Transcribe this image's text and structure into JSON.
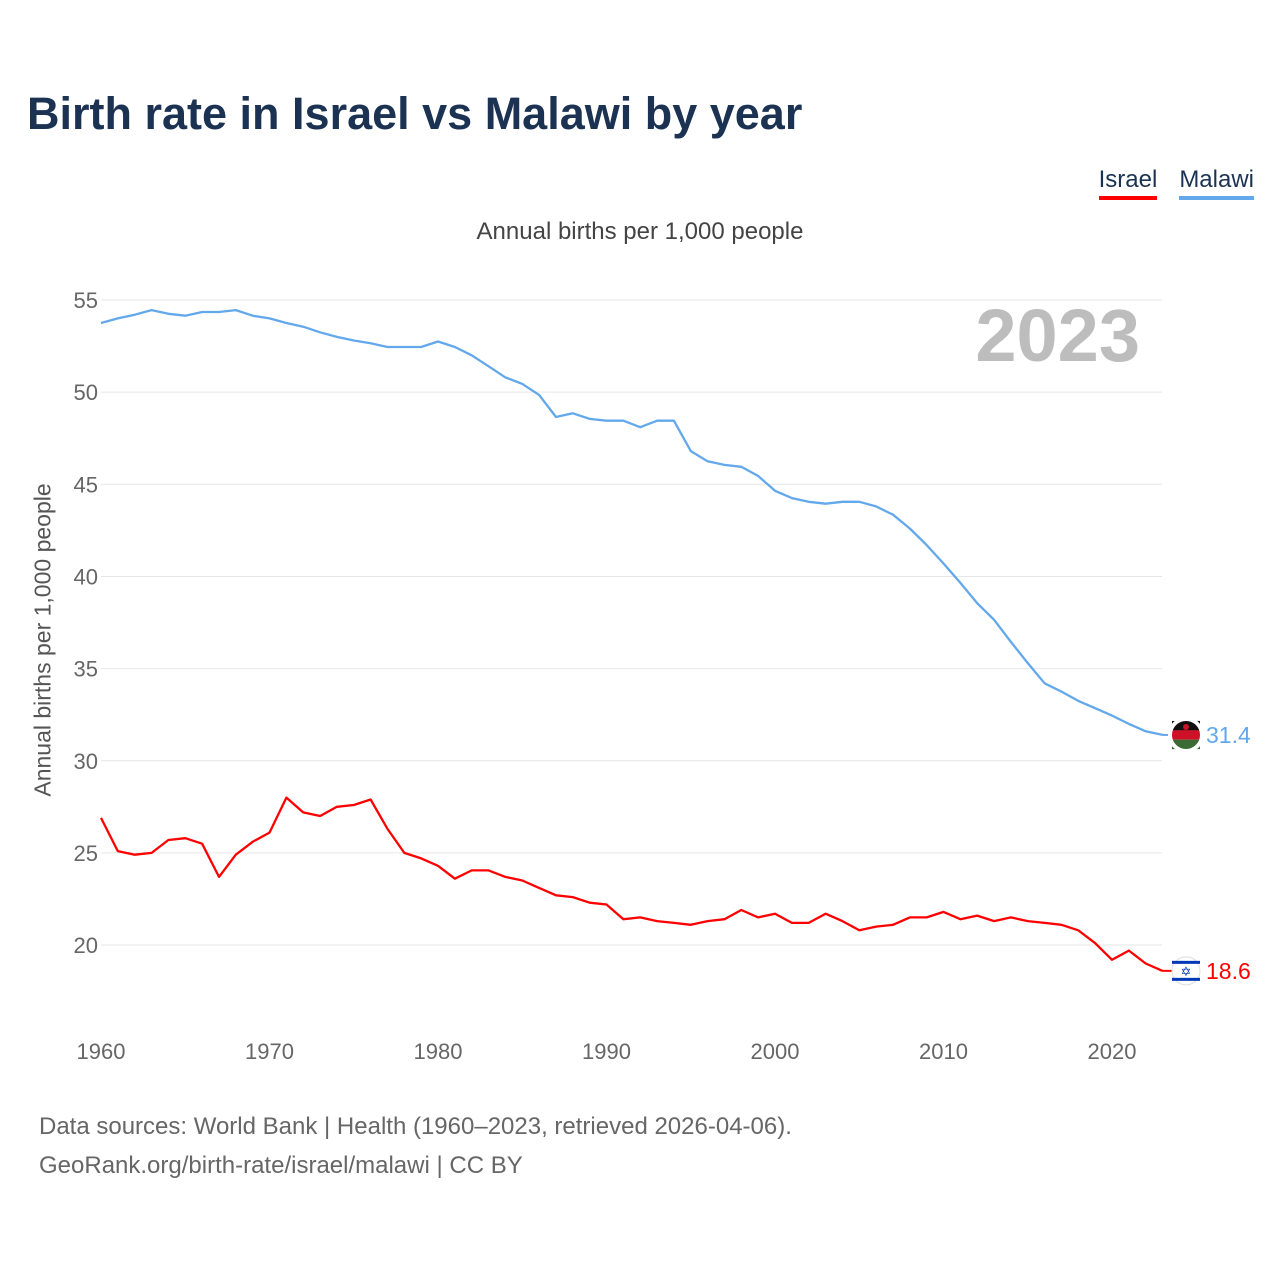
{
  "title": "Birth rate in Israel vs Malawi by year",
  "legend": [
    "Israel",
    "Malawi"
  ],
  "subtitle": "Annual births per 1,000 people",
  "footer": {
    "line1": "Data sources: World Bank | Health (1960–2023, retrieved 2026-04-06).",
    "line2": "GeoRank.org/birth-rate/israel/malawi | CC BY"
  },
  "chart_data": {
    "type": "line",
    "title": "Birth rate in Israel vs Malawi by year",
    "xlabel": "",
    "ylabel": "Annual births per 1,000 people",
    "year_label": "2023",
    "xlim": [
      1960,
      2023
    ],
    "ylim": [
      16,
      56
    ],
    "x_ticks": [
      1960,
      1970,
      1980,
      1990,
      2000,
      2010,
      2020
    ],
    "y_ticks": [
      20,
      25,
      30,
      35,
      40,
      45,
      50,
      55
    ],
    "grid": true,
    "legend_position": "top-right",
    "x_start": 1960,
    "series": [
      {
        "name": "Israel",
        "color": "#ff0000",
        "end_label": "18.6",
        "icon": "israel-flag-icon",
        "values": [
          26.9,
          25.1,
          24.9,
          25.0,
          25.7,
          25.8,
          25.5,
          23.7,
          24.9,
          25.6,
          26.1,
          28.0,
          27.2,
          27.0,
          27.5,
          27.6,
          27.9,
          26.3,
          25.0,
          24.7,
          24.3,
          23.6,
          24.05,
          24.05,
          23.7,
          23.5,
          23.1,
          22.7,
          22.6,
          22.3,
          22.2,
          21.4,
          21.5,
          21.3,
          21.2,
          21.1,
          21.3,
          21.4,
          21.9,
          21.5,
          21.7,
          21.2,
          21.2,
          21.7,
          21.3,
          20.8,
          21.0,
          21.1,
          21.5,
          21.5,
          21.8,
          21.4,
          21.6,
          21.3,
          21.5,
          21.3,
          21.2,
          21.1,
          20.8,
          20.1,
          19.2,
          19.7,
          19.0,
          18.6
        ]
      },
      {
        "name": "Malawi",
        "color": "#63a8eb",
        "end_label": "31.4",
        "icon": "malawi-flag-icon",
        "values": [
          53.75,
          54.0,
          54.2,
          54.45,
          54.25,
          54.15,
          54.35,
          54.35,
          54.45,
          54.15,
          54.0,
          53.75,
          53.55,
          53.25,
          53.0,
          52.8,
          52.65,
          52.45,
          52.45,
          52.45,
          52.75,
          52.45,
          52.0,
          51.4,
          50.8,
          50.45,
          49.85,
          48.65,
          48.85,
          48.55,
          48.45,
          48.45,
          48.1,
          48.45,
          48.45,
          46.8,
          46.25,
          46.05,
          45.95,
          45.45,
          44.65,
          44.25,
          44.05,
          43.95,
          44.05,
          44.05,
          43.8,
          43.35,
          42.6,
          41.7,
          40.7,
          39.65,
          38.55,
          37.65,
          36.45,
          35.3,
          34.2,
          33.75,
          33.25,
          32.85,
          32.45,
          32.0,
          31.6,
          31.4
        ]
      }
    ]
  }
}
